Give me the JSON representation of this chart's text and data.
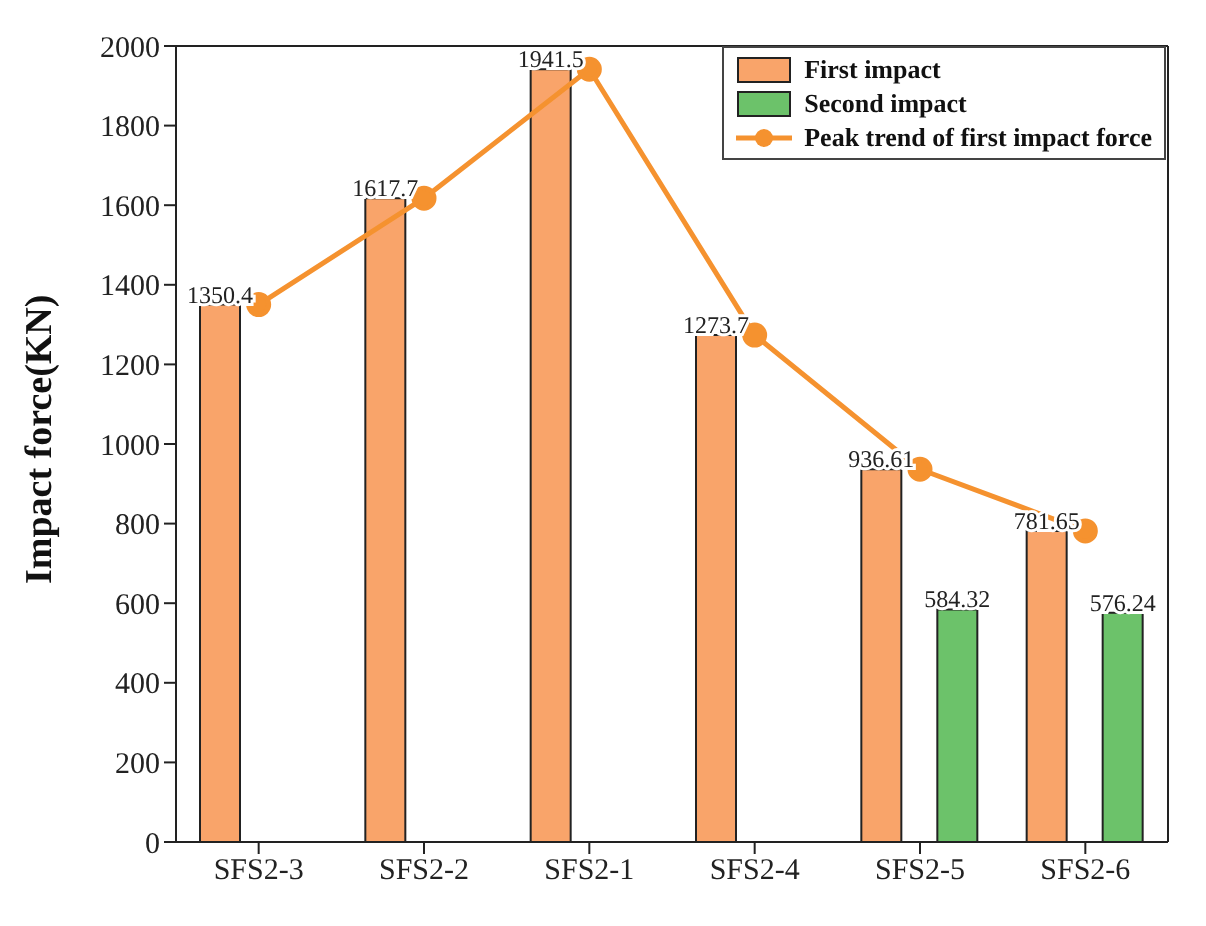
{
  "chart_data": {
    "type": "bar",
    "ylabel": "Impact force(KN)",
    "categories": [
      "SFS2-3",
      "SFS2-2",
      "SFS2-1",
      "SFS2-4",
      "SFS2-5",
      "SFS2-6"
    ],
    "series": [
      {
        "name": "First impact",
        "color": "#f9a46a",
        "values": [
          1350.4,
          1617.7,
          1941.5,
          1273.7,
          936.61,
          781.65
        ],
        "value_labels": [
          "1350.4",
          "1617.7",
          "1941.5",
          "1273.7",
          "936.61",
          "781.65"
        ]
      },
      {
        "name": "Second impact",
        "color": "#6cc26a",
        "values": [
          null,
          null,
          null,
          null,
          584.32,
          576.24
        ],
        "value_labels": [
          null,
          null,
          null,
          null,
          "584.32",
          "576.24"
        ]
      },
      {
        "name": "Peak trend of first impact force",
        "type": "line",
        "color": "#f5922f",
        "values": [
          1350.4,
          1617.7,
          1941.5,
          1273.7,
          936.61,
          781.65
        ]
      }
    ],
    "ylim": [
      0,
      2000
    ],
    "yticks": [
      0,
      200,
      400,
      600,
      800,
      1000,
      1200,
      1400,
      1600,
      1800,
      2000
    ],
    "grid": false,
    "legend": "top right",
    "marker": "circle"
  }
}
